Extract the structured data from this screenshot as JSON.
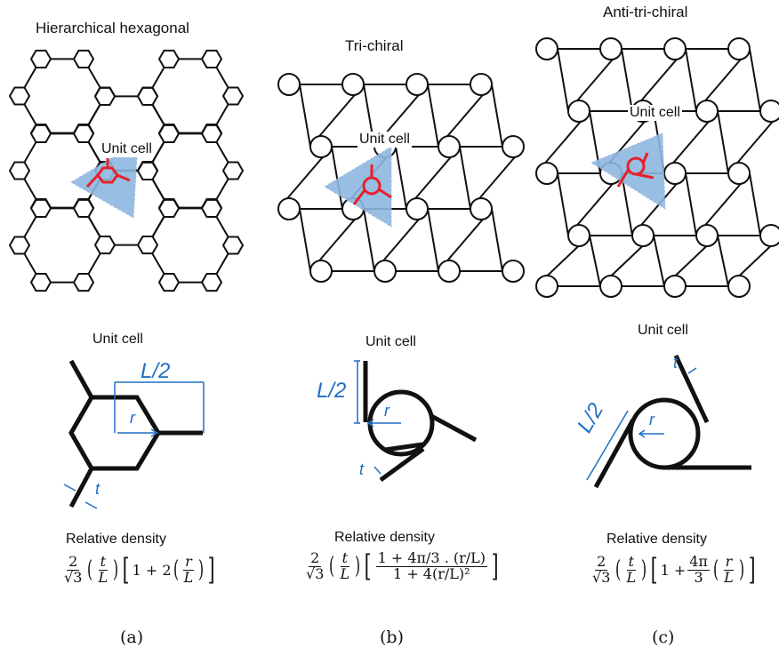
{
  "panels": [
    {
      "title": "Hierarchical hexagonal",
      "lattice_label": "Unit cell",
      "unit_cell_heading": "Unit cell",
      "dim_L": "L/2",
      "dim_r": "r",
      "dim_t": "t",
      "relative_density_label": "Relative density",
      "formula": {
        "prefix_num": "2",
        "prefix_den": "√3",
        "t": "t",
        "L": "L",
        "body_start": "1 + 2",
        "r": "r",
        "L2": "L"
      },
      "caption": "(a)"
    },
    {
      "title": "Tri-chiral",
      "lattice_label": "Unit cell",
      "unit_cell_heading": "Unit cell",
      "dim_L": "L/2",
      "dim_r": "r",
      "dim_t": "t",
      "relative_density_label": "Relative density",
      "formula": {
        "prefix_num": "2",
        "prefix_den": "√3",
        "t": "t",
        "L": "L",
        "inner_num": "1 + 4π/3 . (r/L)",
        "inner_den": "1 + 4(r/L)²"
      },
      "caption": "(b)"
    },
    {
      "title": "Anti-tri-chiral",
      "lattice_label": "Unit cell",
      "unit_cell_heading": "Unit cell",
      "dim_L": "L/2",
      "dim_r": "r",
      "dim_t": "t",
      "relative_density_label": "Relative density",
      "formula": {
        "prefix_num": "2",
        "prefix_den": "√3",
        "t": "t",
        "L": "L",
        "body_start": "1 +",
        "coef_num": "4π",
        "coef_den": "3",
        "r": "r",
        "L2": "L"
      },
      "caption": "(c)"
    }
  ],
  "colors": {
    "line": "#111111",
    "highlight": "#e8202a",
    "unit_cell_fill": "#8fb7e0",
    "dimension": "#1f6fc4"
  }
}
